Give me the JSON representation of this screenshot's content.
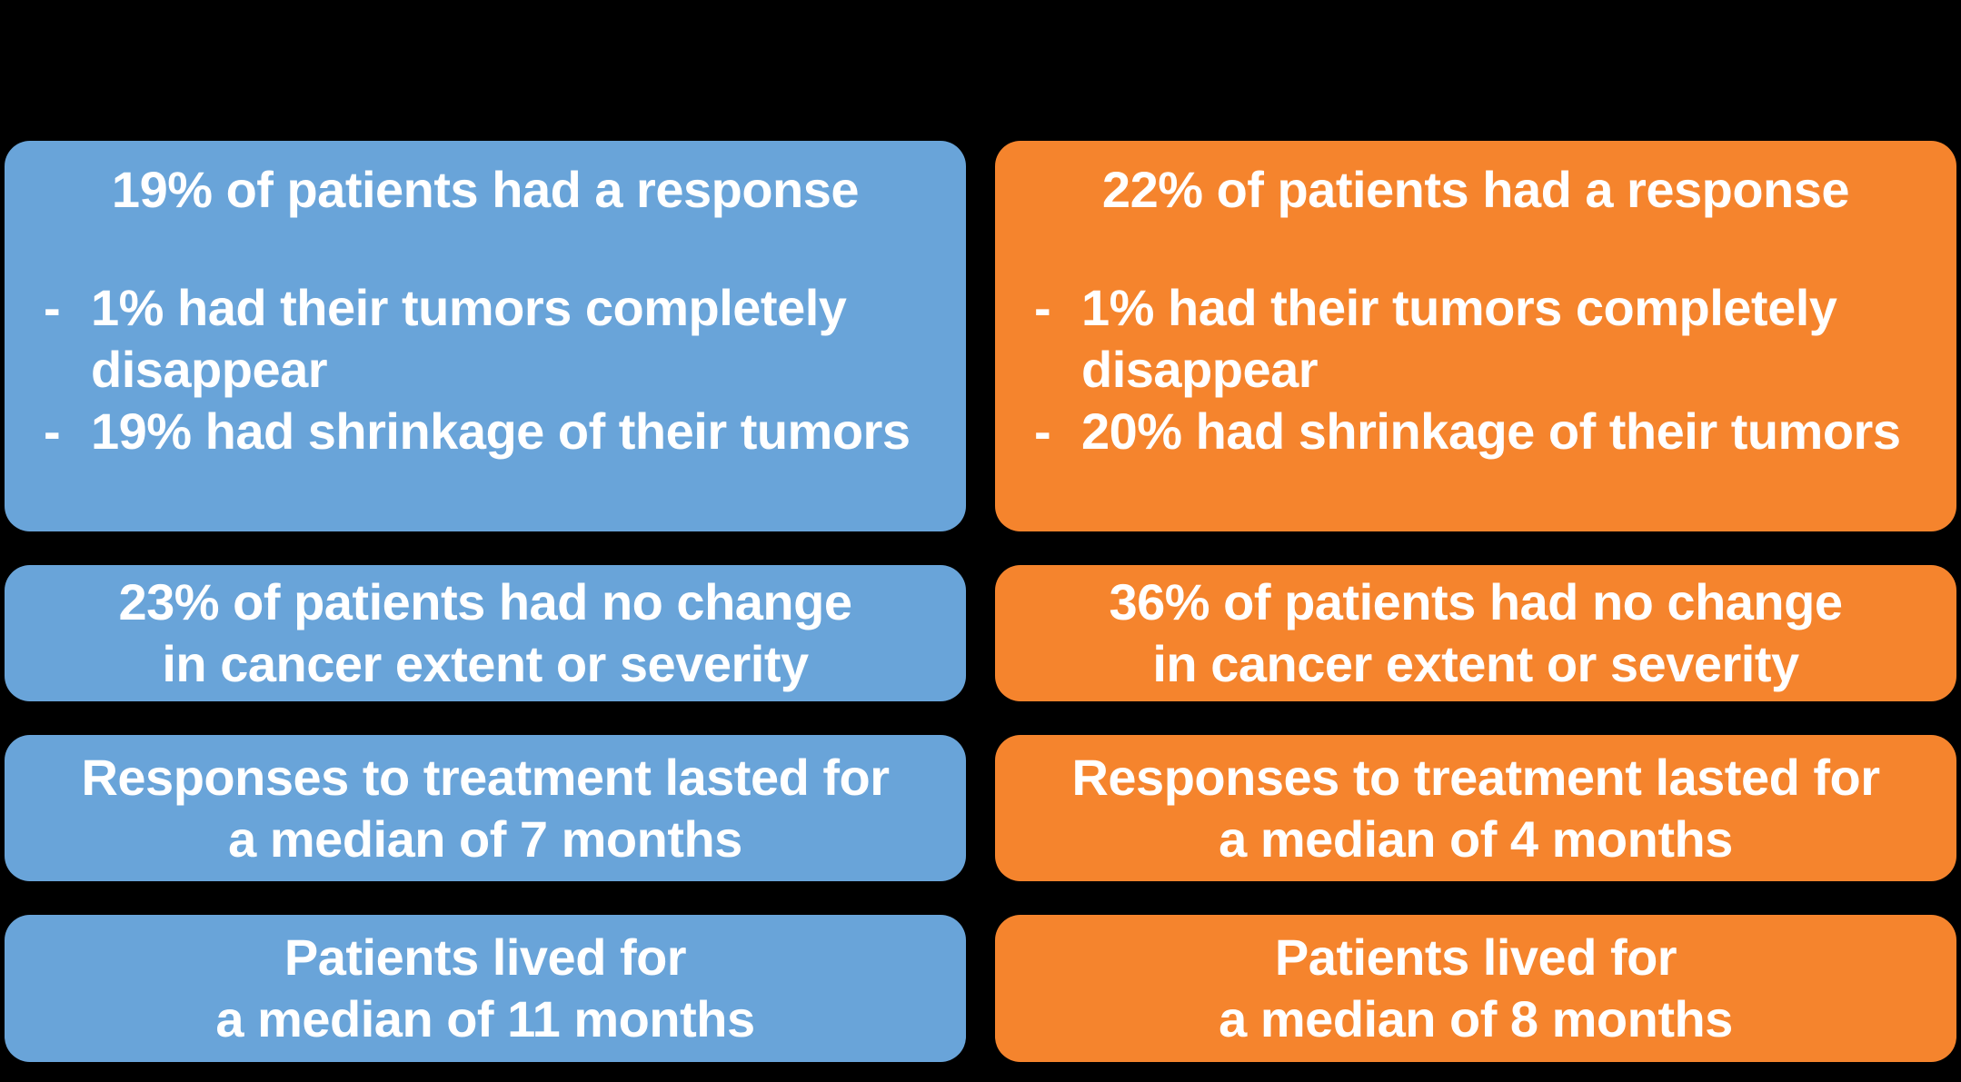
{
  "page": {
    "background_color": "#000000",
    "text_color": "#FFFFFF"
  },
  "bullet_marker": "-",
  "columns": [
    {
      "side": "left",
      "color": "#69A4D9",
      "cards": [
        {
          "heading": "19% of patients had a response",
          "bullets": [
            "1% had their tumors completely disappear",
            "19% had shrinkage of their tumors"
          ]
        },
        {
          "lines": "23% of patients had no change\nin cancer extent or severity"
        },
        {
          "lines": "Responses to treatment lasted for\na median of 7 months"
        },
        {
          "lines": "Patients lived for\na median of 11 months"
        }
      ]
    },
    {
      "side": "right",
      "color": "#F5842D",
      "cards": [
        {
          "heading": "22% of patients had a response",
          "bullets": [
            "1% had their tumors completely disappear",
            "20% had shrinkage of their tumors"
          ]
        },
        {
          "lines": "36% of patients had no change\nin cancer extent or severity"
        },
        {
          "lines": "Responses to treatment lasted for\na median of 4 months"
        },
        {
          "lines": "Patients lived for\na median of 8 months"
        }
      ]
    }
  ]
}
